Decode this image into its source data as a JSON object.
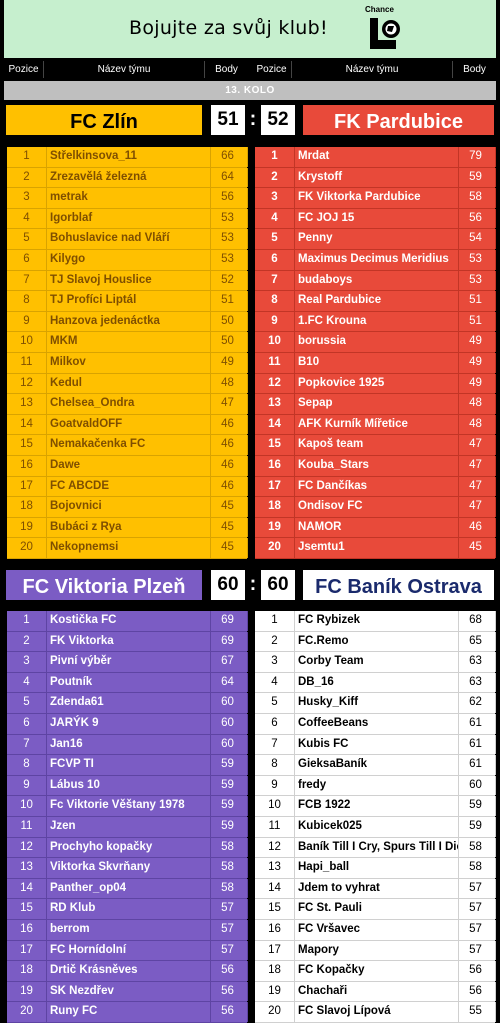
{
  "banner": {
    "title": "Bojujte za svůj klub!",
    "logo_text": "Chance"
  },
  "headers": {
    "pos": "Pozice",
    "name": "Název týmu",
    "pts": "Body"
  },
  "round": "13. KOLO",
  "match1": {
    "home": {
      "name": "FC Zlín",
      "score": "51",
      "color": "#ffc000"
    },
    "away": {
      "name": "FK Pardubice",
      "score": "52",
      "color": "#e84a3a"
    },
    "separator": ":"
  },
  "match2": {
    "home": {
      "name": "FC Viktoria Plzeň",
      "score": "60",
      "color": "#7b5cc4"
    },
    "away": {
      "name": "FC Baník Ostrava",
      "score": "60",
      "color": "#ffffff"
    },
    "separator": ":"
  },
  "zlin": [
    [
      "1",
      "Střelkinsova_11",
      "66"
    ],
    [
      "2",
      "Zrezavělá železná",
      "64"
    ],
    [
      "3",
      "metrak",
      "56"
    ],
    [
      "4",
      "Igorblaf",
      "53"
    ],
    [
      "5",
      "Bohuslavice nad Vláří",
      "53"
    ],
    [
      "6",
      "Kilygo",
      "53"
    ],
    [
      "7",
      "TJ Slavoj Houslice",
      "52"
    ],
    [
      "8",
      "TJ Profíci Liptál",
      "51"
    ],
    [
      "9",
      "Hanzova jedenáctka",
      "50"
    ],
    [
      "10",
      "MKM",
      "50"
    ],
    [
      "11",
      "Milkov",
      "49"
    ],
    [
      "12",
      "Kedul",
      "48"
    ],
    [
      "13",
      "Chelsea_Ondra",
      "47"
    ],
    [
      "14",
      "GoatvaldOFF",
      "46"
    ],
    [
      "15",
      "Nemakačenka FC",
      "46"
    ],
    [
      "16",
      "Dawe",
      "46"
    ],
    [
      "17",
      "FC ABCDE",
      "46"
    ],
    [
      "18",
      "Bojovnici",
      "45"
    ],
    [
      "19",
      "Bubáci z Rya",
      "45"
    ],
    [
      "20",
      "Nekopnemsi",
      "45"
    ]
  ],
  "pardubice": [
    [
      "1",
      "Mrdat",
      "79"
    ],
    [
      "2",
      "Krystoff",
      "59"
    ],
    [
      "3",
      "FK Viktorka Pardubice",
      "58"
    ],
    [
      "4",
      "FC JOJ 15",
      "56"
    ],
    [
      "5",
      "Penny",
      "54"
    ],
    [
      "6",
      "Maximus Decimus Meridius",
      "53"
    ],
    [
      "7",
      "budaboys",
      "53"
    ],
    [
      "8",
      "Real Pardubice",
      "51"
    ],
    [
      "9",
      "1.FC Krouna",
      "51"
    ],
    [
      "10",
      "borussia",
      "49"
    ],
    [
      "11",
      "B10",
      "49"
    ],
    [
      "12",
      "Popkovice 1925",
      "49"
    ],
    [
      "13",
      "Sepap",
      "48"
    ],
    [
      "14",
      "AFK Kurník Mířetice",
      "48"
    ],
    [
      "15",
      "Kapoš team",
      "47"
    ],
    [
      "16",
      "Kouba_Stars",
      "47"
    ],
    [
      "17",
      "FC Dančíkas",
      "47"
    ],
    [
      "18",
      "Ondisov FC",
      "47"
    ],
    [
      "19",
      "NAMOR",
      "46"
    ],
    [
      "20",
      "Jsemtu1",
      "45"
    ]
  ],
  "plzen": [
    [
      "1",
      "Kostička FC",
      "69"
    ],
    [
      "2",
      "FK Viktorka",
      "69"
    ],
    [
      "3",
      "Pivní výběr",
      "67"
    ],
    [
      "4",
      "Poutník",
      "64"
    ],
    [
      "5",
      "Zdenda61",
      "60"
    ],
    [
      "6",
      "JARÝK 9",
      "60"
    ],
    [
      "7",
      "Jan16",
      "60"
    ],
    [
      "8",
      "FCVP TI",
      "59"
    ],
    [
      "9",
      "Lábus 10",
      "59"
    ],
    [
      "10",
      "Fc Viktorie Věštany 1978",
      "59"
    ],
    [
      "11",
      "Jzen",
      "59"
    ],
    [
      "12",
      "Prochyho kopačky",
      "58"
    ],
    [
      "13",
      "Viktorka Skvrňany",
      "58"
    ],
    [
      "14",
      "Panther_op04",
      "58"
    ],
    [
      "15",
      "RD Klub",
      "57"
    ],
    [
      "16",
      "berrom",
      "57"
    ],
    [
      "17",
      "FC Hornídolní",
      "57"
    ],
    [
      "18",
      "Drtič Krásněves",
      "56"
    ],
    [
      "19",
      "SK Nezdřev",
      "56"
    ],
    [
      "20",
      "Runy FC",
      "56"
    ]
  ],
  "ostrava": [
    [
      "1",
      "FC Rybizek",
      "68"
    ],
    [
      "2",
      "FC.Remo",
      "65"
    ],
    [
      "3",
      "Corby Team",
      "63"
    ],
    [
      "4",
      "DB_16",
      "63"
    ],
    [
      "5",
      "Husky_Kiff",
      "62"
    ],
    [
      "6",
      "CoffeeBeans",
      "61"
    ],
    [
      "7",
      "Kubis FC",
      "61"
    ],
    [
      "8",
      "GieksaBaník",
      "61"
    ],
    [
      "9",
      "fredy",
      "60"
    ],
    [
      "10",
      "FCB 1922",
      "59"
    ],
    [
      "11",
      "Kubicek025",
      "59"
    ],
    [
      "12",
      "Baník Till I Cry, Spurs Till I Die",
      "58"
    ],
    [
      "13",
      "Hapi_ball",
      "58"
    ],
    [
      "14",
      "Jdem to vyhrat",
      "57"
    ],
    [
      "15",
      "FC St. Pauli",
      "57"
    ],
    [
      "16",
      "FC Vršavec",
      "57"
    ],
    [
      "17",
      "Mapory",
      "57"
    ],
    [
      "18",
      "FC Kopačky",
      "56"
    ],
    [
      "19",
      "Chachaři",
      "56"
    ],
    [
      "20",
      "FC Slavoj Lípová",
      "55"
    ]
  ]
}
